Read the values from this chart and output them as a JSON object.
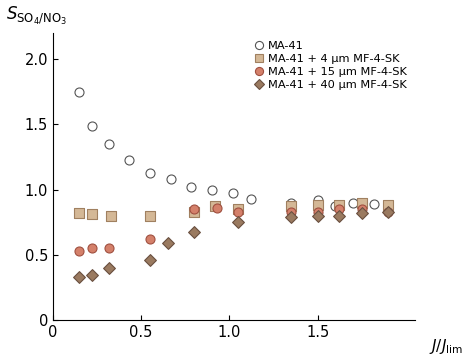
{
  "series": {
    "MA-41": {
      "x": [
        0.15,
        0.22,
        0.32,
        0.43,
        0.55,
        0.67,
        0.78,
        0.9,
        1.02,
        1.12,
        1.35,
        1.5,
        1.6,
        1.7,
        1.82,
        1.9
      ],
      "y": [
        1.75,
        1.49,
        1.35,
        1.23,
        1.13,
        1.08,
        1.02,
        1.0,
        0.97,
        0.93,
        0.9,
        0.92,
        0.87,
        0.9,
        0.89,
        0.88
      ],
      "marker": "o",
      "facecolor": "white",
      "edgecolor": "#555555",
      "markersize": 6.5
    },
    "MA-41 + 4 μm MF-4-SK": {
      "x": [
        0.15,
        0.22,
        0.33,
        0.55,
        0.8,
        0.92,
        1.05,
        1.35,
        1.5,
        1.62,
        1.75,
        1.9
      ],
      "y": [
        0.82,
        0.81,
        0.8,
        0.8,
        0.83,
        0.87,
        0.85,
        0.87,
        0.88,
        0.88,
        0.9,
        0.88
      ],
      "marker": "s",
      "facecolor": "#d4b896",
      "edgecolor": "#a08060",
      "markersize": 6.5
    },
    "MA-41 + 15 μm MF-4-SK": {
      "x": [
        0.15,
        0.22,
        0.32,
        0.55,
        0.8,
        0.93,
        1.05,
        1.35,
        1.5,
        1.62,
        1.75,
        1.9
      ],
      "y": [
        0.53,
        0.55,
        0.55,
        0.62,
        0.85,
        0.86,
        0.83,
        0.83,
        0.83,
        0.85,
        0.85,
        0.83
      ],
      "marker": "o",
      "facecolor": "#d4806a",
      "edgecolor": "#a05040",
      "markersize": 6.5
    },
    "MA-41 + 40 μm MF-4-SK": {
      "x": [
        0.15,
        0.22,
        0.32,
        0.55,
        0.65,
        0.8,
        1.05,
        1.35,
        1.5,
        1.62,
        1.75,
        1.9
      ],
      "y": [
        0.33,
        0.34,
        0.4,
        0.46,
        0.59,
        0.67,
        0.75,
        0.79,
        0.8,
        0.8,
        0.82,
        0.83
      ],
      "marker": "D",
      "facecolor": "#9a7a60",
      "edgecolor": "#6a5040",
      "markersize": 6.0
    }
  },
  "xlim": [
    0,
    2.05
  ],
  "ylim": [
    0,
    2.2
  ],
  "xticks": [
    0,
    0.5,
    1.0,
    1.5
  ],
  "yticks": [
    0,
    0.5,
    1.0,
    1.5,
    2.0
  ],
  "xlabel_sub": "lim",
  "ylabel_main": "S",
  "ylabel_sub": "SO",
  "ylabel_sub2": "4",
  "ylabel_sub3": "/NO",
  "ylabel_sub4": "3",
  "legend_fontsize": 8.2,
  "tick_labelsize": 10.5
}
